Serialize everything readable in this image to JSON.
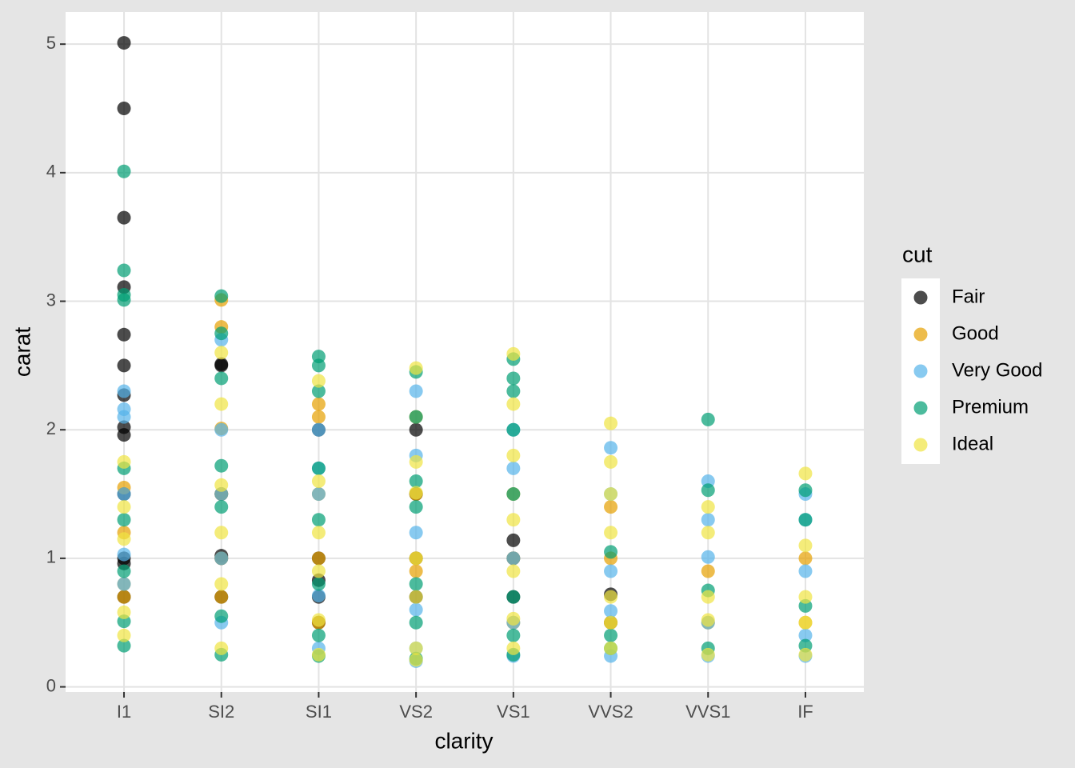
{
  "chart_data": {
    "type": "scatter",
    "x_label": "clarity",
    "y_label": "carat",
    "legend_title": "cut",
    "categories": [
      "I1",
      "SI2",
      "SI1",
      "VS2",
      "VS1",
      "VVS2",
      "VVS1",
      "IF"
    ],
    "ylim": [
      -0.04,
      5.25
    ],
    "yticks": [
      0,
      1,
      2,
      3,
      4,
      5
    ],
    "grid": true,
    "legend": "right",
    "series": [
      {
        "name": "Fair",
        "color": "#000000",
        "x": [
          "I1",
          "I1",
          "I1",
          "I1",
          "I1",
          "I1",
          "I1",
          "I1",
          "I1",
          "I1",
          "I1",
          "I1",
          "I1",
          "SI2",
          "SI2",
          "SI2",
          "SI2",
          "SI2",
          "SI2",
          "SI1",
          "SI1",
          "SI1",
          "SI1",
          "SI1",
          "VS2",
          "VS2",
          "VS2",
          "VS2",
          "VS1",
          "VS1",
          "VS1",
          "VVS2",
          "VVS2"
        ],
        "values": [
          5.01,
          4.5,
          3.65,
          3.11,
          2.74,
          2.5,
          2.27,
          2.02,
          1.96,
          1.5,
          1.0,
          0.96,
          0.7,
          2.51,
          2.5,
          1.5,
          1.02,
          1.0,
          0.7,
          2.0,
          1.0,
          0.83,
          0.7,
          0.5,
          2.0,
          1.5,
          1.0,
          0.7,
          1.14,
          1.0,
          0.7,
          0.72,
          0.5
        ]
      },
      {
        "name": "Good",
        "color": "#E69F00",
        "x": [
          "I1",
          "I1",
          "I1",
          "I1",
          "SI2",
          "SI2",
          "SI2",
          "SI2",
          "SI2",
          "SI2",
          "SI1",
          "SI1",
          "SI1",
          "SI1",
          "SI1",
          "VS2",
          "VS2",
          "VS2",
          "VS2",
          "VS1",
          "VS1",
          "VS1",
          "VVS2",
          "VVS2",
          "VVS2",
          "VVS1",
          "VVS1",
          "IF",
          "IF"
        ],
        "values": [
          1.55,
          1.2,
          0.8,
          0.7,
          3.01,
          2.8,
          2.01,
          1.5,
          1.0,
          0.7,
          2.2,
          2.1,
          1.5,
          1.0,
          0.5,
          2.1,
          1.5,
          1.0,
          0.9,
          1.5,
          1.0,
          0.5,
          1.4,
          1.0,
          0.5,
          0.9,
          0.5,
          1.0,
          0.5
        ]
      },
      {
        "name": "Very Good",
        "color": "#56B4E9",
        "x": [
          "I1",
          "I1",
          "I1",
          "I1",
          "I1",
          "I1",
          "SI2",
          "SI2",
          "SI2",
          "SI2",
          "SI2",
          "SI1",
          "SI1",
          "SI1",
          "SI1",
          "SI1",
          "VS2",
          "VS2",
          "VS2",
          "VS2",
          "VS2",
          "VS2",
          "VS1",
          "VS1",
          "VS1",
          "VS1",
          "VS1",
          "VVS2",
          "VVS2",
          "VVS2",
          "VVS2",
          "VVS2",
          "VVS1",
          "VVS1",
          "VVS1",
          "VVS1",
          "VVS1",
          "IF",
          "IF",
          "IF",
          "IF",
          "IF"
        ],
        "values": [
          2.3,
          2.16,
          2.1,
          1.5,
          1.03,
          0.8,
          2.7,
          2.0,
          1.5,
          1.0,
          0.5,
          2.0,
          1.7,
          1.5,
          0.71,
          0.3,
          2.3,
          1.8,
          1.2,
          0.6,
          0.3,
          0.2,
          2.0,
          1.7,
          1.0,
          0.5,
          0.24,
          1.86,
          1.5,
          0.9,
          0.59,
          0.24,
          1.6,
          1.3,
          1.01,
          0.5,
          0.24,
          1.5,
          1.3,
          0.9,
          0.4,
          0.24
        ]
      },
      {
        "name": "Premium",
        "color": "#009E73",
        "x": [
          "I1",
          "I1",
          "I1",
          "I1",
          "I1",
          "I1",
          "I1",
          "I1",
          "I1",
          "SI2",
          "SI2",
          "SI2",
          "SI2",
          "SI2",
          "SI2",
          "SI2",
          "SI1",
          "SI1",
          "SI1",
          "SI1",
          "SI1",
          "SI1",
          "SI1",
          "SI1",
          "VS2",
          "VS2",
          "VS2",
          "VS2",
          "VS2",
          "VS2",
          "VS2",
          "VS1",
          "VS1",
          "VS1",
          "VS1",
          "VS1",
          "VS1",
          "VS1",
          "VS1",
          "VVS2",
          "VVS2",
          "VVS2",
          "VVS1",
          "VVS1",
          "VVS1",
          "VVS1",
          "IF",
          "IF",
          "IF",
          "IF"
        ],
        "values": [
          4.01,
          3.24,
          3.05,
          3.01,
          1.7,
          1.3,
          0.9,
          0.51,
          0.32,
          3.04,
          2.75,
          2.4,
          1.72,
          1.4,
          0.55,
          0.25,
          2.57,
          2.5,
          2.3,
          1.7,
          1.3,
          0.8,
          0.4,
          0.24,
          2.45,
          2.1,
          1.6,
          1.4,
          0.8,
          0.5,
          0.22,
          2.55,
          2.4,
          2.3,
          2.0,
          1.5,
          0.7,
          0.4,
          0.25,
          1.05,
          0.4,
          0.3,
          2.08,
          1.53,
          0.75,
          0.3,
          1.53,
          1.3,
          0.63,
          0.32
        ]
      },
      {
        "name": "Ideal",
        "color": "#F0E442",
        "x": [
          "I1",
          "I1",
          "I1",
          "I1",
          "I1",
          "SI2",
          "SI2",
          "SI2",
          "SI2",
          "SI2",
          "SI2",
          "SI1",
          "SI1",
          "SI1",
          "SI1",
          "SI1",
          "SI1",
          "VS2",
          "VS2",
          "VS2",
          "VS2",
          "VS2",
          "VS2",
          "VS2",
          "VS1",
          "VS1",
          "VS1",
          "VS1",
          "VS1",
          "VS1",
          "VS1",
          "VVS2",
          "VVS2",
          "VVS2",
          "VVS2",
          "VVS2",
          "VVS2",
          "VVS2",
          "VVS1",
          "VVS1",
          "VVS1",
          "VVS1",
          "VVS1",
          "IF",
          "IF",
          "IF",
          "IF",
          "IF"
        ],
        "values": [
          1.75,
          1.4,
          1.15,
          0.58,
          0.4,
          2.6,
          2.2,
          1.57,
          1.2,
          0.8,
          0.3,
          2.38,
          1.6,
          1.2,
          0.9,
          0.52,
          0.25,
          2.48,
          1.75,
          1.51,
          1.0,
          0.7,
          0.3,
          0.21,
          2.59,
          2.2,
          1.8,
          1.3,
          0.9,
          0.53,
          0.3,
          2.05,
          1.75,
          1.5,
          1.2,
          0.7,
          0.5,
          0.3,
          1.4,
          1.2,
          0.7,
          0.52,
          0.25,
          1.66,
          1.1,
          0.7,
          0.5,
          0.25
        ]
      }
    ]
  }
}
